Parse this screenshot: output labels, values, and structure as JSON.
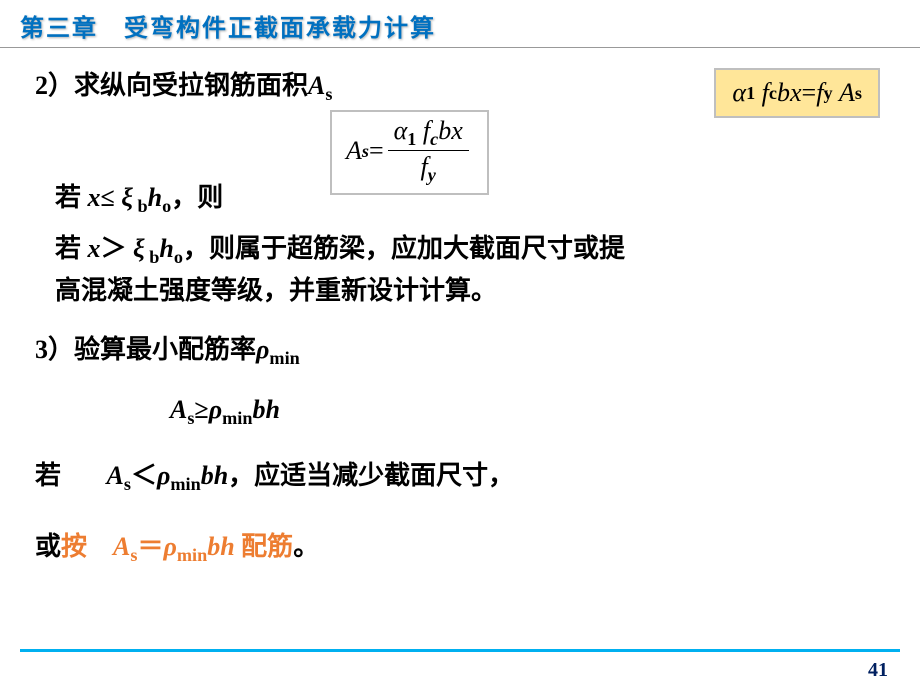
{
  "chapter_title": "第三章　受弯构件正截面承载力计算",
  "step2": {
    "heading_prefix": "2）求纵向受拉钢筋面积",
    "symbol_A": "A",
    "symbol_s": "s"
  },
  "yellow_formula": {
    "alpha": "α",
    "one": "1",
    "fc": "f",
    "c": "c",
    "b": "b",
    "x": "x",
    "eq": " = ",
    "fy": "f",
    "y": "y",
    "A": "A",
    "s": "s"
  },
  "gray_formula": {
    "A": "A",
    "s": "s",
    "eq": " = ",
    "alpha": "α",
    "one": "1",
    "fc": "f",
    "c": "c",
    "b": "b",
    "x": "x",
    "fy": "f",
    "y": "y"
  },
  "cond1": {
    "ruo": "若 ",
    "x": "x",
    "le": "≤",
    "xi": " ξ",
    "b": " b",
    "h": "h",
    "o": "o",
    "ze": "，则"
  },
  "cond2": {
    "ruo": "若 ",
    "x": "x",
    "gt": "＞",
    "xi": " ξ",
    "b": " b",
    "h": "h",
    "o": "o",
    "rest1": "，则属于超筋梁，应加大截面尺寸或提",
    "rest2": "高混凝土强度等级，并重新设计计算。"
  },
  "step3": {
    "heading_prefix": "3）验算最小配筋率",
    "rho": "ρ",
    "min": "min"
  },
  "ineq1": {
    "A": "A",
    "s": "s",
    "ge": "≥",
    "rho": "ρ",
    "min": "min",
    "bh": "bh"
  },
  "cond3": {
    "ruo": "若",
    "A": "A",
    "s": "s",
    "lt": "＜",
    "rho": "ρ",
    "min": "min",
    "bh": "bh",
    "rest": "，应适当减少截面尺寸，"
  },
  "cond4": {
    "huo": "或",
    "an": "按",
    "A": "A",
    "s": "s",
    "eq": "＝",
    "rho": "ρ",
    "min": "min",
    "bh": "bh",
    "rest": " 配筋",
    "period": "。"
  },
  "page_number": "41"
}
